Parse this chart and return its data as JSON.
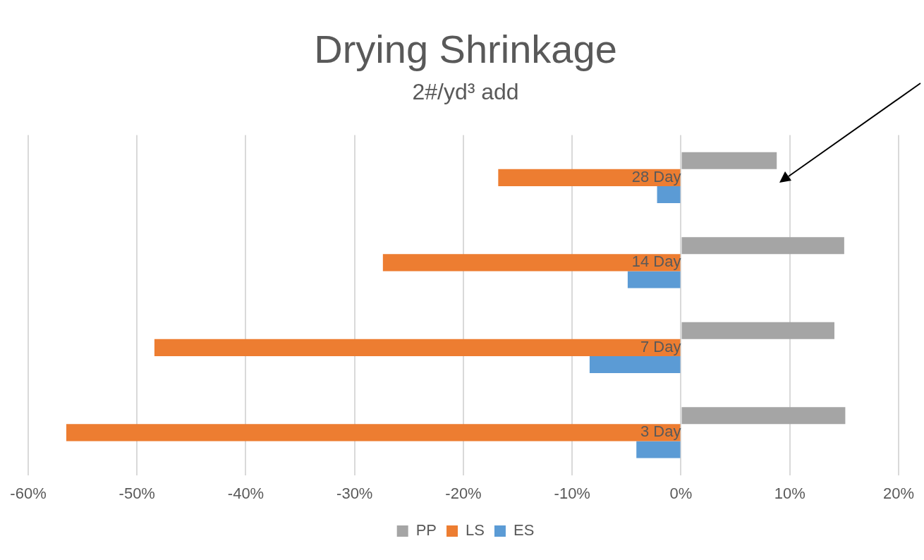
{
  "chart_data": {
    "type": "bar",
    "orientation": "horizontal",
    "title": "Drying Shrinkage",
    "subtitle": "2#/yd³ add",
    "categories": [
      "28 Day",
      "14 Day",
      "7 Day",
      "3 Day"
    ],
    "series": [
      {
        "name": "PP",
        "color": "#a5a5a5",
        "values": [
          8.8,
          15.0,
          14.1,
          15.1
        ]
      },
      {
        "name": "LS",
        "color": "#ed7d31",
        "values": [
          -16.8,
          -27.4,
          -48.4,
          -56.5
        ]
      },
      {
        "name": "ES",
        "color": "#5b9bd5",
        "values": [
          -2.2,
          -4.9,
          -8.4,
          -4.1
        ]
      }
    ],
    "xlim": [
      -60,
      20
    ],
    "xticks": [
      {
        "value": -60,
        "label": "-60%"
      },
      {
        "value": -50,
        "label": "-50%"
      },
      {
        "value": -40,
        "label": "-40%"
      },
      {
        "value": -30,
        "label": "-30%"
      },
      {
        "value": -20,
        "label": "-20%"
      },
      {
        "value": -10,
        "label": "-10%"
      },
      {
        "value": 0,
        "label": "0%"
      },
      {
        "value": 10,
        "label": "10%"
      },
      {
        "value": 20,
        "label": "20%"
      }
    ],
    "grid": "x",
    "legend": "bottom"
  }
}
